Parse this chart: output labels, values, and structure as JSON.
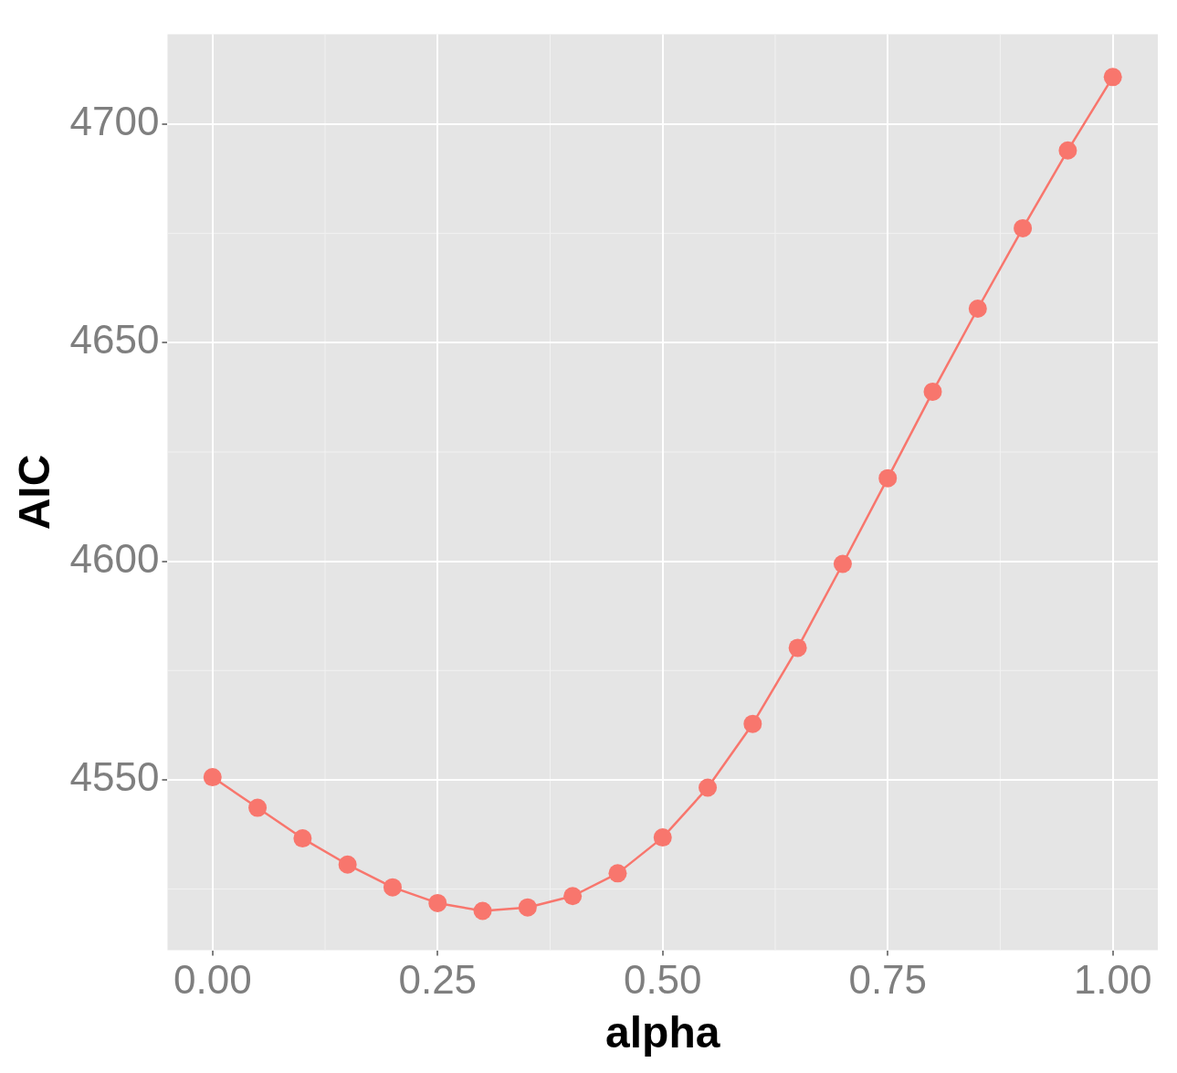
{
  "chart_data": {
    "type": "line",
    "xlabel": "alpha",
    "ylabel": "AIC",
    "marker": "circle",
    "line_style": "solid",
    "grid": true,
    "legend": false,
    "x": [
      0,
      0.05,
      0.1,
      0.15,
      0.2,
      0.25,
      0.3,
      0.35,
      0.4,
      0.45,
      0.5,
      0.55,
      0.6,
      0.65,
      0.7,
      0.75,
      0.8,
      0.85,
      0.9,
      0.95,
      1
    ],
    "series": [
      {
        "color": "#f8766d",
        "values": [
          4550.6,
          4543.6,
          4536.6,
          4530.6,
          4525.4,
          4521.8,
          4520,
          4520.8,
          4523.4,
          4528.6,
          4536.8,
          4548.2,
          4562.8,
          4580.2,
          4599.4,
          4619,
          4638.8,
          4657.8,
          4676.2,
          4694,
          4710.8
        ]
      }
    ],
    "xlim": [
      -0.05,
      1.05
    ],
    "ylim": [
      4511,
      4720.6
    ],
    "xticks": [
      {
        "value": 0,
        "label": "0.00"
      },
      {
        "value": 0.25,
        "label": "0.25"
      },
      {
        "value": 0.5,
        "label": "0.50"
      },
      {
        "value": 0.75,
        "label": "0.75"
      },
      {
        "value": 1,
        "label": "1.00"
      }
    ],
    "yticks": [
      4550,
      4600,
      4650,
      4700
    ]
  }
}
